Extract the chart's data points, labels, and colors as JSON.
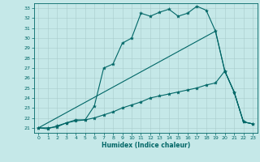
{
  "xlabel": "Humidex (Indice chaleur)",
  "xlim": [
    -0.5,
    23.5
  ],
  "ylim": [
    20.5,
    33.5
  ],
  "xticks": [
    0,
    1,
    2,
    3,
    4,
    5,
    6,
    7,
    8,
    9,
    10,
    11,
    12,
    13,
    14,
    15,
    16,
    17,
    18,
    19,
    20,
    21,
    22,
    23
  ],
  "yticks": [
    21,
    22,
    23,
    24,
    25,
    26,
    27,
    28,
    29,
    30,
    31,
    32,
    33
  ],
  "bg_color": "#c5e8e8",
  "line_color": "#006666",
  "grid_color": "#aacccc",
  "line1_x": [
    0,
    1,
    2,
    3,
    4,
    5,
    6,
    7,
    8,
    9,
    10,
    11,
    12,
    13,
    14,
    15,
    16,
    17,
    18,
    19,
    20,
    21,
    22,
    23
  ],
  "line1_y": [
    21.0,
    20.9,
    21.2,
    21.5,
    21.7,
    21.8,
    23.2,
    27.0,
    27.4,
    29.5,
    30.0,
    32.5,
    32.2,
    32.6,
    32.9,
    32.2,
    32.5,
    33.2,
    32.8,
    30.7,
    26.7,
    24.6,
    21.6,
    21.4
  ],
  "line2_x": [
    0,
    1,
    2,
    3,
    4,
    5,
    6,
    7,
    8,
    9,
    10,
    11,
    12,
    13,
    14,
    15,
    16,
    17,
    18,
    19,
    20,
    21,
    22,
    23
  ],
  "line2_y": [
    21.0,
    21.0,
    21.1,
    21.5,
    21.8,
    21.8,
    22.0,
    22.3,
    22.6,
    23.0,
    23.3,
    23.6,
    24.0,
    24.2,
    24.4,
    24.6,
    24.8,
    25.0,
    25.3,
    25.5,
    26.7,
    24.6,
    21.6,
    21.4
  ],
  "line3_x": [
    0,
    19,
    20,
    21,
    22,
    23
  ],
  "line3_y": [
    21.0,
    30.7,
    26.7,
    24.6,
    21.6,
    21.4
  ]
}
